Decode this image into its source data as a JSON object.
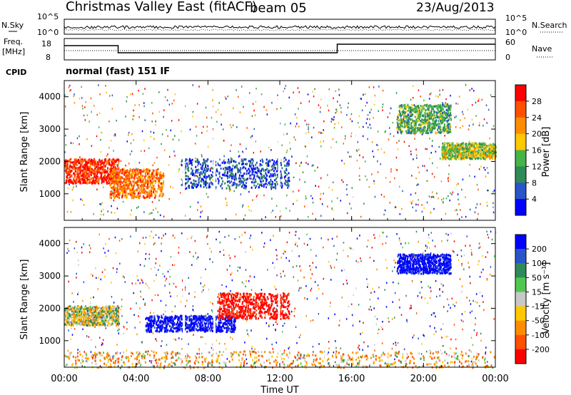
{
  "header": {
    "title": "Christmas Valley East (fitACF)",
    "beam": "beam 05",
    "date": "23/Aug/2013"
  },
  "strips": {
    "noise_left": "N.Sky",
    "noise_right": "N.Search",
    "noise_ticks_left": [
      "10^5",
      "10^0"
    ],
    "noise_ticks_right": [
      "10^5",
      "10^0"
    ],
    "freq_left_1": "Freq.",
    "freq_left_2": "[MHz]",
    "freq_ticks_left": [
      "18",
      "8"
    ],
    "freq_ticks_right": [
      "60",
      "0"
    ],
    "nave_label": "Nave",
    "cpid_label": "CPID",
    "cpid_text": "normal (fast) 151 IF"
  },
  "chart_data": [
    {
      "type": "heatmap",
      "name": "power",
      "ylabel": "Slant Range [km]",
      "yticks": [
        "1000",
        "2000",
        "3000",
        "4000"
      ],
      "ylim": [
        180,
        4500
      ],
      "xlim": [
        0,
        24
      ],
      "colorbar": {
        "label": "Power [dB]",
        "ticks": [
          "4",
          "8",
          "12",
          "16",
          "20",
          "24",
          "28"
        ],
        "range": [
          0,
          32
        ],
        "colors": [
          "#0000ff",
          "#2855c8",
          "#2e8b57",
          "#46b446",
          "#ffc800",
          "#ff8c00",
          "#ff5000",
          "#ff0000"
        ]
      },
      "regions": [
        {
          "x": [
            0,
            3
          ],
          "y": [
            1350,
            2100
          ],
          "level": 28
        },
        {
          "x": [
            2.5,
            5.5
          ],
          "y": [
            900,
            1800
          ],
          "level": 24
        },
        {
          "x": [
            6.5,
            12.5
          ],
          "y": [
            1200,
            2100
          ],
          "level": 6
        },
        {
          "x": [
            18.5,
            21.5
          ],
          "y": [
            2900,
            3800
          ],
          "level": 12
        },
        {
          "x": [
            21,
            24
          ],
          "y": [
            2100,
            2600
          ],
          "level": 16
        }
      ]
    },
    {
      "type": "heatmap",
      "name": "velocity",
      "xlabel": "Time UT",
      "xticks": [
        "00:00",
        "04:00",
        "08:00",
        "12:00",
        "16:00",
        "20:00",
        "00:00"
      ],
      "ylabel": "Slant Range [km]",
      "yticks": [
        "1000",
        "2000",
        "3000",
        "4000"
      ],
      "ylim": [
        180,
        4500
      ],
      "xlim": [
        0,
        24
      ],
      "colorbar": {
        "label": "Velocity [m s⁻¹]",
        "ticks": [
          "200",
          "100",
          "50",
          "15",
          "-15",
          "-50",
          "-100",
          "-200"
        ],
        "colors": [
          "#0000ff",
          "#2855c8",
          "#2e8b57",
          "#50c850",
          "#c8c8c8",
          "#ffc800",
          "#ff8c00",
          "#ff5000",
          "#ff0000"
        ]
      },
      "regions": [
        {
          "x": [
            0,
            3
          ],
          "y": [
            1500,
            2100
          ],
          "level": 0
        },
        {
          "x": [
            4.5,
            9.5
          ],
          "y": [
            1300,
            1800
          ],
          "level": 200
        },
        {
          "x": [
            8.5,
            12.5
          ],
          "y": [
            1700,
            2500
          ],
          "level": -200
        },
        {
          "x": [
            18.5,
            21.5
          ],
          "y": [
            3100,
            3700
          ],
          "level": 200
        },
        {
          "x": [
            0,
            24
          ],
          "y": [
            180,
            700
          ],
          "level": -50
        }
      ]
    }
  ]
}
